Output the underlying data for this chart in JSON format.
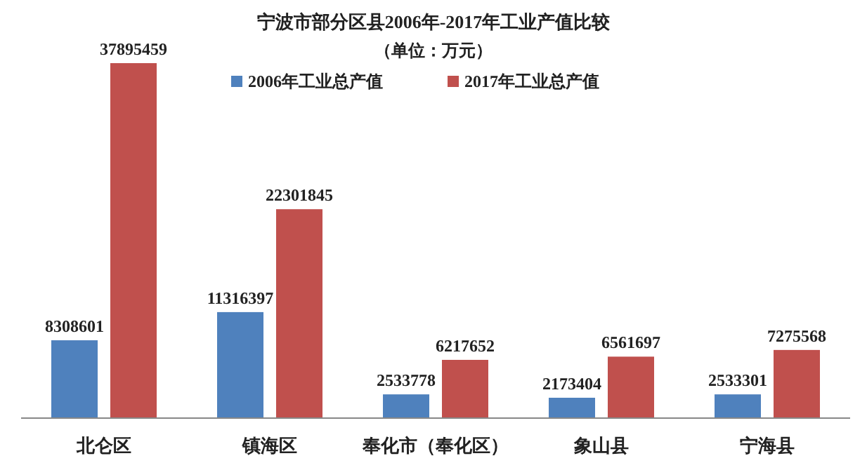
{
  "chart_data": {
    "type": "bar",
    "title": "宁波市部分区县2006年-2017年工业产值比较",
    "subtitle": "（单位：万元）",
    "categories": [
      "北仑区",
      "镇海区",
      "奉化市（奉化区）",
      "象山县",
      "宁海县"
    ],
    "series": [
      {
        "name": "2006年工业总产值",
        "color": "#4f81bd",
        "values": [
          8308601,
          11316397,
          2533778,
          2173404,
          2533301
        ]
      },
      {
        "name": "2017年工业总产值",
        "color": "#c0504d",
        "values": [
          37895459,
          22301845,
          6217652,
          6561697,
          7275568
        ]
      }
    ],
    "data_labels": true,
    "legend": "top"
  }
}
